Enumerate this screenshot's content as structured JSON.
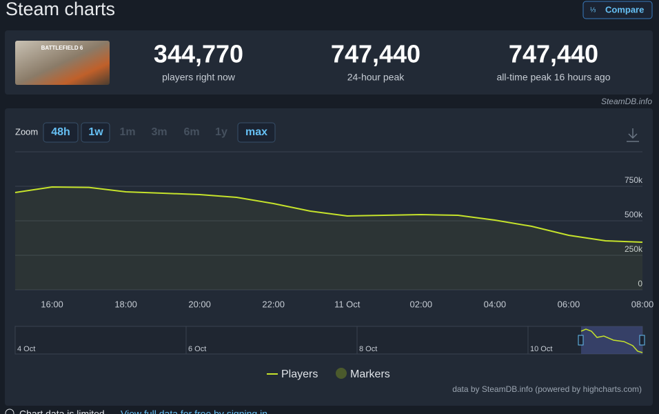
{
  "header": {
    "title": "Steam charts",
    "compare": "Compare",
    "game_caption": "BATTLEFIELD 6"
  },
  "stats": [
    {
      "value": "344,770",
      "label": "players right now"
    },
    {
      "value": "747,440",
      "label": "24-hour peak"
    },
    {
      "value": "747,440",
      "label": "all-time peak 16 hours ago"
    }
  ],
  "source": "SteamDB.info",
  "zoom": {
    "label": "Zoom",
    "buttons": [
      "48h",
      "1w",
      "1m",
      "3m",
      "6m",
      "1y",
      "max"
    ]
  },
  "navigator": {
    "labels": [
      "4 Oct",
      "6 Oct",
      "8 Oct",
      "10 Oct"
    ]
  },
  "chart_data": {
    "type": "line",
    "categories": [
      null,
      "16:00",
      null,
      "18:00",
      null,
      "20:00",
      null,
      "22:00",
      null,
      "11 Oct",
      null,
      "02:00",
      null,
      "04:00",
      null,
      "06:00",
      null,
      "08:00"
    ],
    "series": [
      {
        "name": "Players",
        "color": "#c6e32b",
        "values": [
          705000,
          745000,
          742000,
          710000,
          700000,
          690000,
          670000,
          625000,
          570000,
          535000,
          540000,
          545000,
          540000,
          505000,
          460000,
          395000,
          355000,
          345000
        ]
      }
    ],
    "markers": {
      "name": "Markers",
      "color": "#4b5a2c"
    },
    "ylim": [
      0,
      1000000
    ],
    "yticks": [
      0,
      {
        "value": 250000,
        "label": "250k"
      },
      {
        "value": 500000,
        "label": "500k"
      },
      {
        "value": 750000,
        "label": "750k"
      }
    ],
    "grid": true,
    "credit": "data by SteamDB.info (powered by highcharts.com)"
  },
  "footer": {
    "notice": "Chart data is limited.",
    "link": "View full data for free by signing in"
  }
}
